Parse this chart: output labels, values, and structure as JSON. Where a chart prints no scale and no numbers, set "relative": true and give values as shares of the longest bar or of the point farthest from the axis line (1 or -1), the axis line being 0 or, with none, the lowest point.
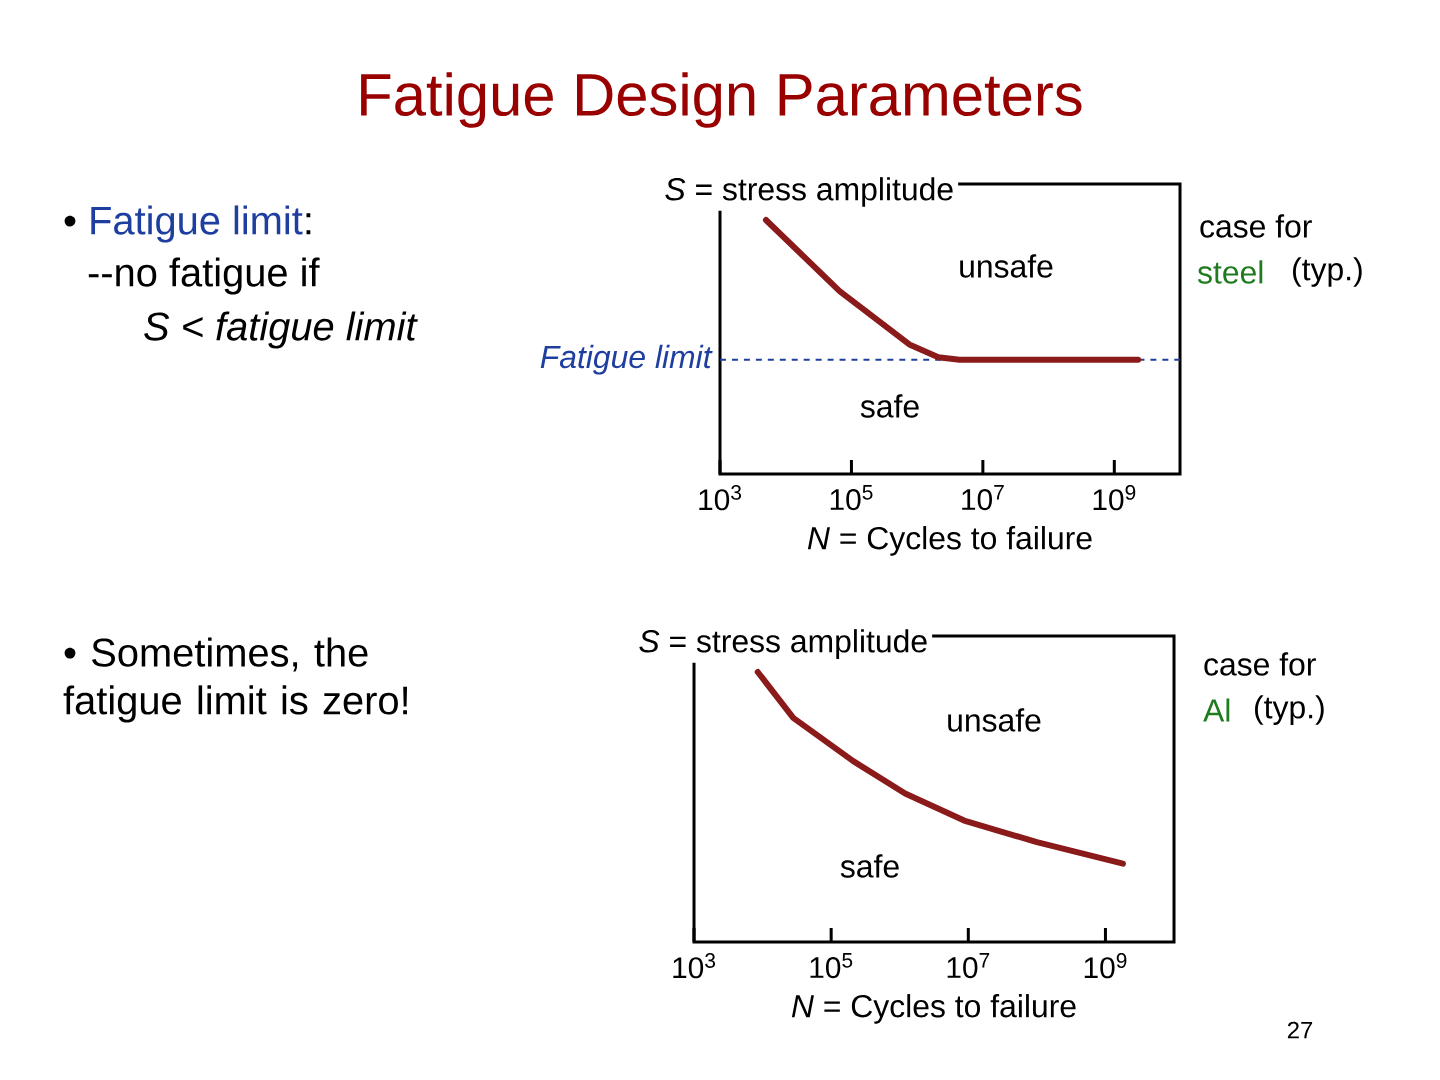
{
  "chart_data": [
    {
      "type": "line",
      "title": "Fatigue Design Parameters",
      "xlabel": "*N* = Cycles to failure",
      "ylabel": "*S* = stress amplitude",
      "relative": true,
      "log": "x",
      "xlim": [
        1000,
        10000000000
      ],
      "xticks": [
        {
          "value": 1000,
          "label": "10$^{3}$"
        },
        {
          "value": 100000,
          "label": "10$^{5}$"
        },
        {
          "value": 10000000,
          "label": "10$^{7}$"
        },
        {
          "value": 1000000000,
          "label": "10$^{9}$"
        }
      ],
      "x": [
        5000,
        66000,
        760000,
        2100000,
        4400000,
        2300000000
      ],
      "series": [
        {
          "color": "#8b1a1a",
          "values": [
            1.0,
            0.72,
            0.51,
            0.46,
            0.45,
            0.45
          ]
        }
      ],
      "ref_lines": [
        {
          "axis": "y",
          "value": 0.45,
          "label": "Fatigue limit",
          "color": "#1f3fa0",
          "line_style": "dashed"
        }
      ],
      "annotations": [
        "•",
        "Fatigue limit",
        ":",
        "--no fatigue if",
        "S < fatigue limit",
        "unsafe",
        "safe",
        "case for",
        "steel",
        "(typ.)"
      ]
    },
    {
      "type": "line",
      "xlabel": "*N* = Cycles to failure",
      "ylabel": "*S* = stress amplitude",
      "relative": true,
      "log": "x",
      "xlim": [
        1000,
        10000000000
      ],
      "xticks": [
        {
          "value": 1000,
          "label": "10$^{3}$"
        },
        {
          "value": 100000,
          "label": "10$^{5}$"
        },
        {
          "value": 10000000,
          "label": "10$^{7}$"
        },
        {
          "value": 1000000000,
          "label": "10$^{9}$"
        }
      ],
      "x": [
        8500,
        28000,
        210000,
        1200000,
        8700000,
        100000000,
        1800000000
      ],
      "series": [
        {
          "color": "#8b1a1a",
          "values": [
            1.0,
            0.83,
            0.67,
            0.55,
            0.45,
            0.37,
            0.29
          ]
        }
      ],
      "annotations": [
        "• Sometimes, the fatigue limit is zero!",
        "unsafe",
        "safe",
        "case for",
        "Al",
        "(typ.)",
        "27"
      ]
    }
  ]
}
